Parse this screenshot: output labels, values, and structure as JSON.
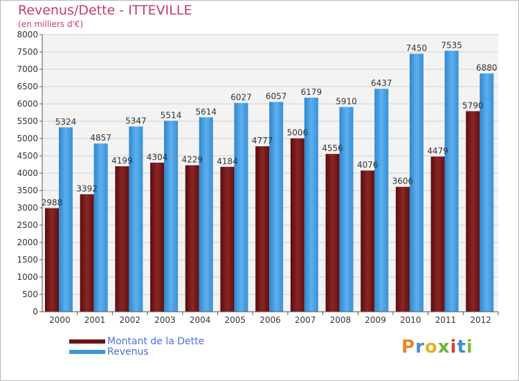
{
  "chart_data": {
    "type": "bar",
    "title": "Revenus/Dette - ITTEVILLE",
    "subtitle": "(en milliers d'€)",
    "categories": [
      "2000",
      "2001",
      "2002",
      "2003",
      "2004",
      "2005",
      "2006",
      "2007",
      "2008",
      "2009",
      "2010",
      "2011",
      "2012"
    ],
    "series": [
      {
        "name": "Montant de la Dette",
        "color": "#7a1a1a",
        "values": [
          2988,
          3392,
          4199,
          4304,
          4229,
          4184,
          4777,
          5006,
          4556,
          4076,
          3606,
          4479,
          5790
        ]
      },
      {
        "name": "Revenus",
        "color": "#3d97dc",
        "values": [
          5324,
          4857,
          5347,
          5514,
          5614,
          6027,
          6057,
          6179,
          5910,
          6437,
          7450,
          7535,
          6880
        ]
      }
    ],
    "ylim": [
      0,
      8000
    ],
    "yticks": [
      0,
      500,
      1000,
      1500,
      2000,
      2500,
      3000,
      3500,
      4000,
      4500,
      5000,
      5500,
      6000,
      6500,
      7000,
      7500,
      8000
    ],
    "grid": true,
    "legend_position": "bottom-left"
  },
  "logo_text": "Proxiti"
}
